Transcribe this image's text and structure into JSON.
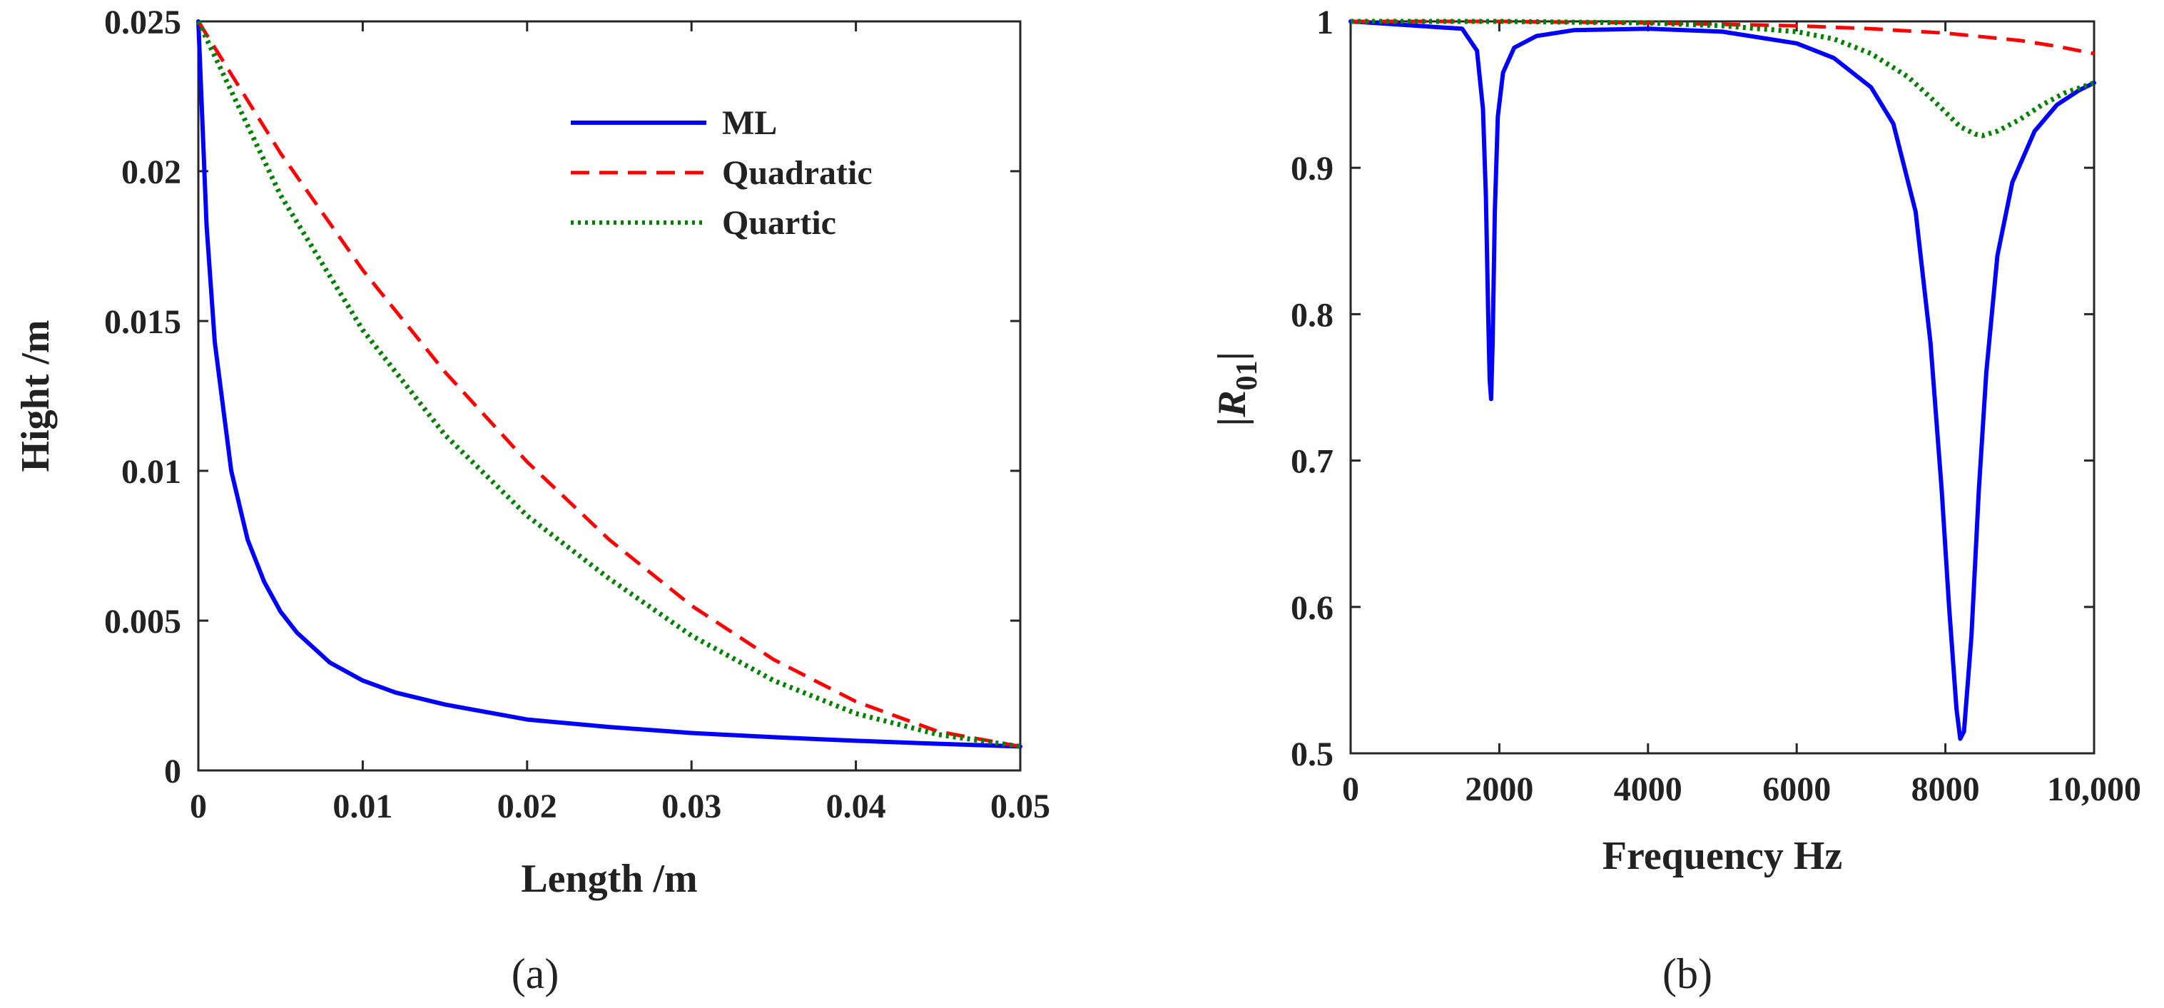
{
  "colors": {
    "ml": "#0000ff",
    "quadratic": "#ff0000",
    "quartic": "#008000",
    "axis": "#262626",
    "background": "#ffffff"
  },
  "chart_data": [
    {
      "panel": "(a)",
      "type": "line",
      "xlabel": "Length /m",
      "ylabel": "Hight /m",
      "xlim": [
        0,
        0.05
      ],
      "ylim": [
        0,
        0.025
      ],
      "xticks": [
        0,
        0.01,
        0.02,
        0.03,
        0.04,
        0.05
      ],
      "xtick_labels": [
        "0",
        "0.01",
        "0.02",
        "0.03",
        "0.04",
        "0.05"
      ],
      "yticks": [
        0,
        0.005,
        0.01,
        0.015,
        0.02,
        0.025
      ],
      "ytick_labels": [
        "0",
        "0.005",
        "0.01",
        "0.015",
        "0.02",
        "0.025"
      ],
      "legend_position": "top-right",
      "series": [
        {
          "name": "ML",
          "style": "solid",
          "x": [
            0,
            0.0005,
            0.001,
            0.002,
            0.003,
            0.004,
            0.005,
            0.006,
            0.008,
            0.01,
            0.012,
            0.015,
            0.02,
            0.025,
            0.03,
            0.035,
            0.04,
            0.045,
            0.05
          ],
          "y": [
            0.025,
            0.0182,
            0.0143,
            0.01,
            0.0077,
            0.0063,
            0.0053,
            0.0046,
            0.0036,
            0.003,
            0.0026,
            0.0022,
            0.0017,
            0.00145,
            0.00125,
            0.00111,
            0.00099,
            0.00089,
            0.0008
          ]
        },
        {
          "name": "Quadratic",
          "style": "dashed",
          "x": [
            0,
            0.005,
            0.01,
            0.015,
            0.02,
            0.025,
            0.03,
            0.035,
            0.04,
            0.045,
            0.05
          ],
          "y": [
            0.025,
            0.0206,
            0.0167,
            0.0133,
            0.0103,
            0.0077,
            0.0055,
            0.0037,
            0.0023,
            0.0013,
            0.0008
          ]
        },
        {
          "name": "Quartic",
          "style": "dotted",
          "x": [
            0,
            0.005,
            0.01,
            0.015,
            0.02,
            0.025,
            0.03,
            0.035,
            0.04,
            0.045,
            0.05
          ],
          "y": [
            0.025,
            0.0192,
            0.0147,
            0.0112,
            0.0085,
            0.0064,
            0.0045,
            0.003,
            0.0019,
            0.0012,
            0.0008
          ]
        }
      ]
    },
    {
      "panel": "(b)",
      "type": "line",
      "xlabel": "Frequency Hz",
      "ylabel": "|R01|",
      "ylabel_main": "|R",
      "ylabel_sub": "01",
      "ylabel_end": "|",
      "xlim": [
        0,
        10000
      ],
      "ylim": [
        0.5,
        1.0
      ],
      "xticks": [
        0,
        2000,
        4000,
        6000,
        8000,
        10000
      ],
      "xtick_labels": [
        "0",
        "2000",
        "4000",
        "6000",
        "8000",
        "10,000"
      ],
      "yticks": [
        0.5,
        0.6,
        0.7,
        0.8,
        0.9,
        1.0
      ],
      "ytick_labels": [
        "0.5",
        "0.6",
        "0.7",
        "0.8",
        "0.9",
        "1"
      ],
      "series": [
        {
          "name": "ML",
          "style": "solid",
          "x": [
            0,
            1500,
            1700,
            1780,
            1820,
            1850,
            1870,
            1890,
            1910,
            1940,
            1980,
            2050,
            2200,
            2500,
            3000,
            4000,
            5000,
            6000,
            6500,
            7000,
            7300,
            7600,
            7800,
            7950,
            8050,
            8150,
            8200,
            8250,
            8350,
            8450,
            8550,
            8700,
            8900,
            9200,
            9500,
            9800,
            10000
          ],
          "y": [
            1.0,
            0.995,
            0.98,
            0.94,
            0.88,
            0.8,
            0.755,
            0.742,
            0.78,
            0.87,
            0.935,
            0.965,
            0.982,
            0.99,
            0.994,
            0.995,
            0.993,
            0.985,
            0.975,
            0.955,
            0.93,
            0.87,
            0.78,
            0.68,
            0.6,
            0.53,
            0.51,
            0.515,
            0.58,
            0.68,
            0.76,
            0.84,
            0.89,
            0.925,
            0.943,
            0.953,
            0.958
          ]
        },
        {
          "name": "Quadratic",
          "style": "dashed",
          "x": [
            0,
            2000,
            4000,
            5000,
            6000,
            7000,
            8000,
            9000,
            9500,
            10000
          ],
          "y": [
            1.0,
            1.0,
            0.999,
            0.998,
            0.997,
            0.995,
            0.992,
            0.987,
            0.983,
            0.978
          ]
        },
        {
          "name": "Quartic",
          "style": "dotted",
          "x": [
            0,
            2000,
            4000,
            5000,
            6000,
            6500,
            7000,
            7500,
            7800,
            8000,
            8200,
            8400,
            8500,
            8700,
            9000,
            9300,
            9600,
            10000
          ],
          "y": [
            1.0,
            1.0,
            0.999,
            0.997,
            0.993,
            0.988,
            0.978,
            0.962,
            0.948,
            0.938,
            0.928,
            0.923,
            0.922,
            0.925,
            0.933,
            0.943,
            0.951,
            0.958
          ]
        }
      ]
    }
  ]
}
